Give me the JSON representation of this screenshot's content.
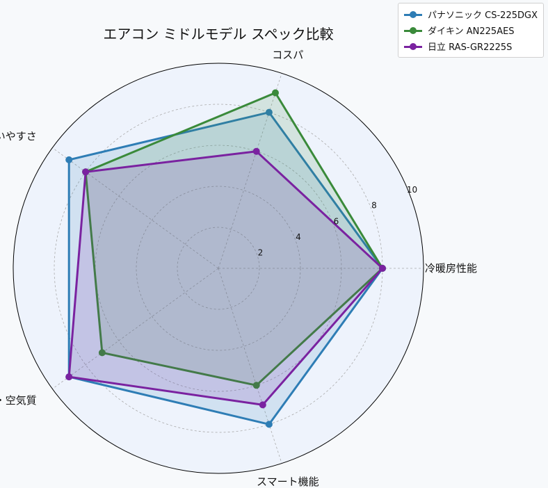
{
  "chart_data": {
    "type": "radar",
    "title": "エアコン ミドルモデル スペック比較",
    "axes": [
      "冷暖房性能",
      "コスパ",
      "使いやすさ",
      "清潔・空気質",
      "スマート機能"
    ],
    "rlim": [
      0,
      10
    ],
    "rticks": [
      "2",
      "4",
      "6",
      "8",
      "10"
    ],
    "grid": true,
    "legend_position": "top-right",
    "series": [
      {
        "name": "パナソニック CS-225DGX",
        "color": "#2e7db5",
        "values": [
          8,
          8,
          9,
          9,
          8
        ]
      },
      {
        "name": "ダイキン AN225AES",
        "color": "#3a8a3a",
        "values": [
          8,
          9,
          8,
          7,
          6
        ]
      },
      {
        "name": "日立 RAS-GR2225S",
        "color": "#7a22a0",
        "values": [
          8,
          6,
          8,
          9,
          7
        ]
      }
    ]
  }
}
